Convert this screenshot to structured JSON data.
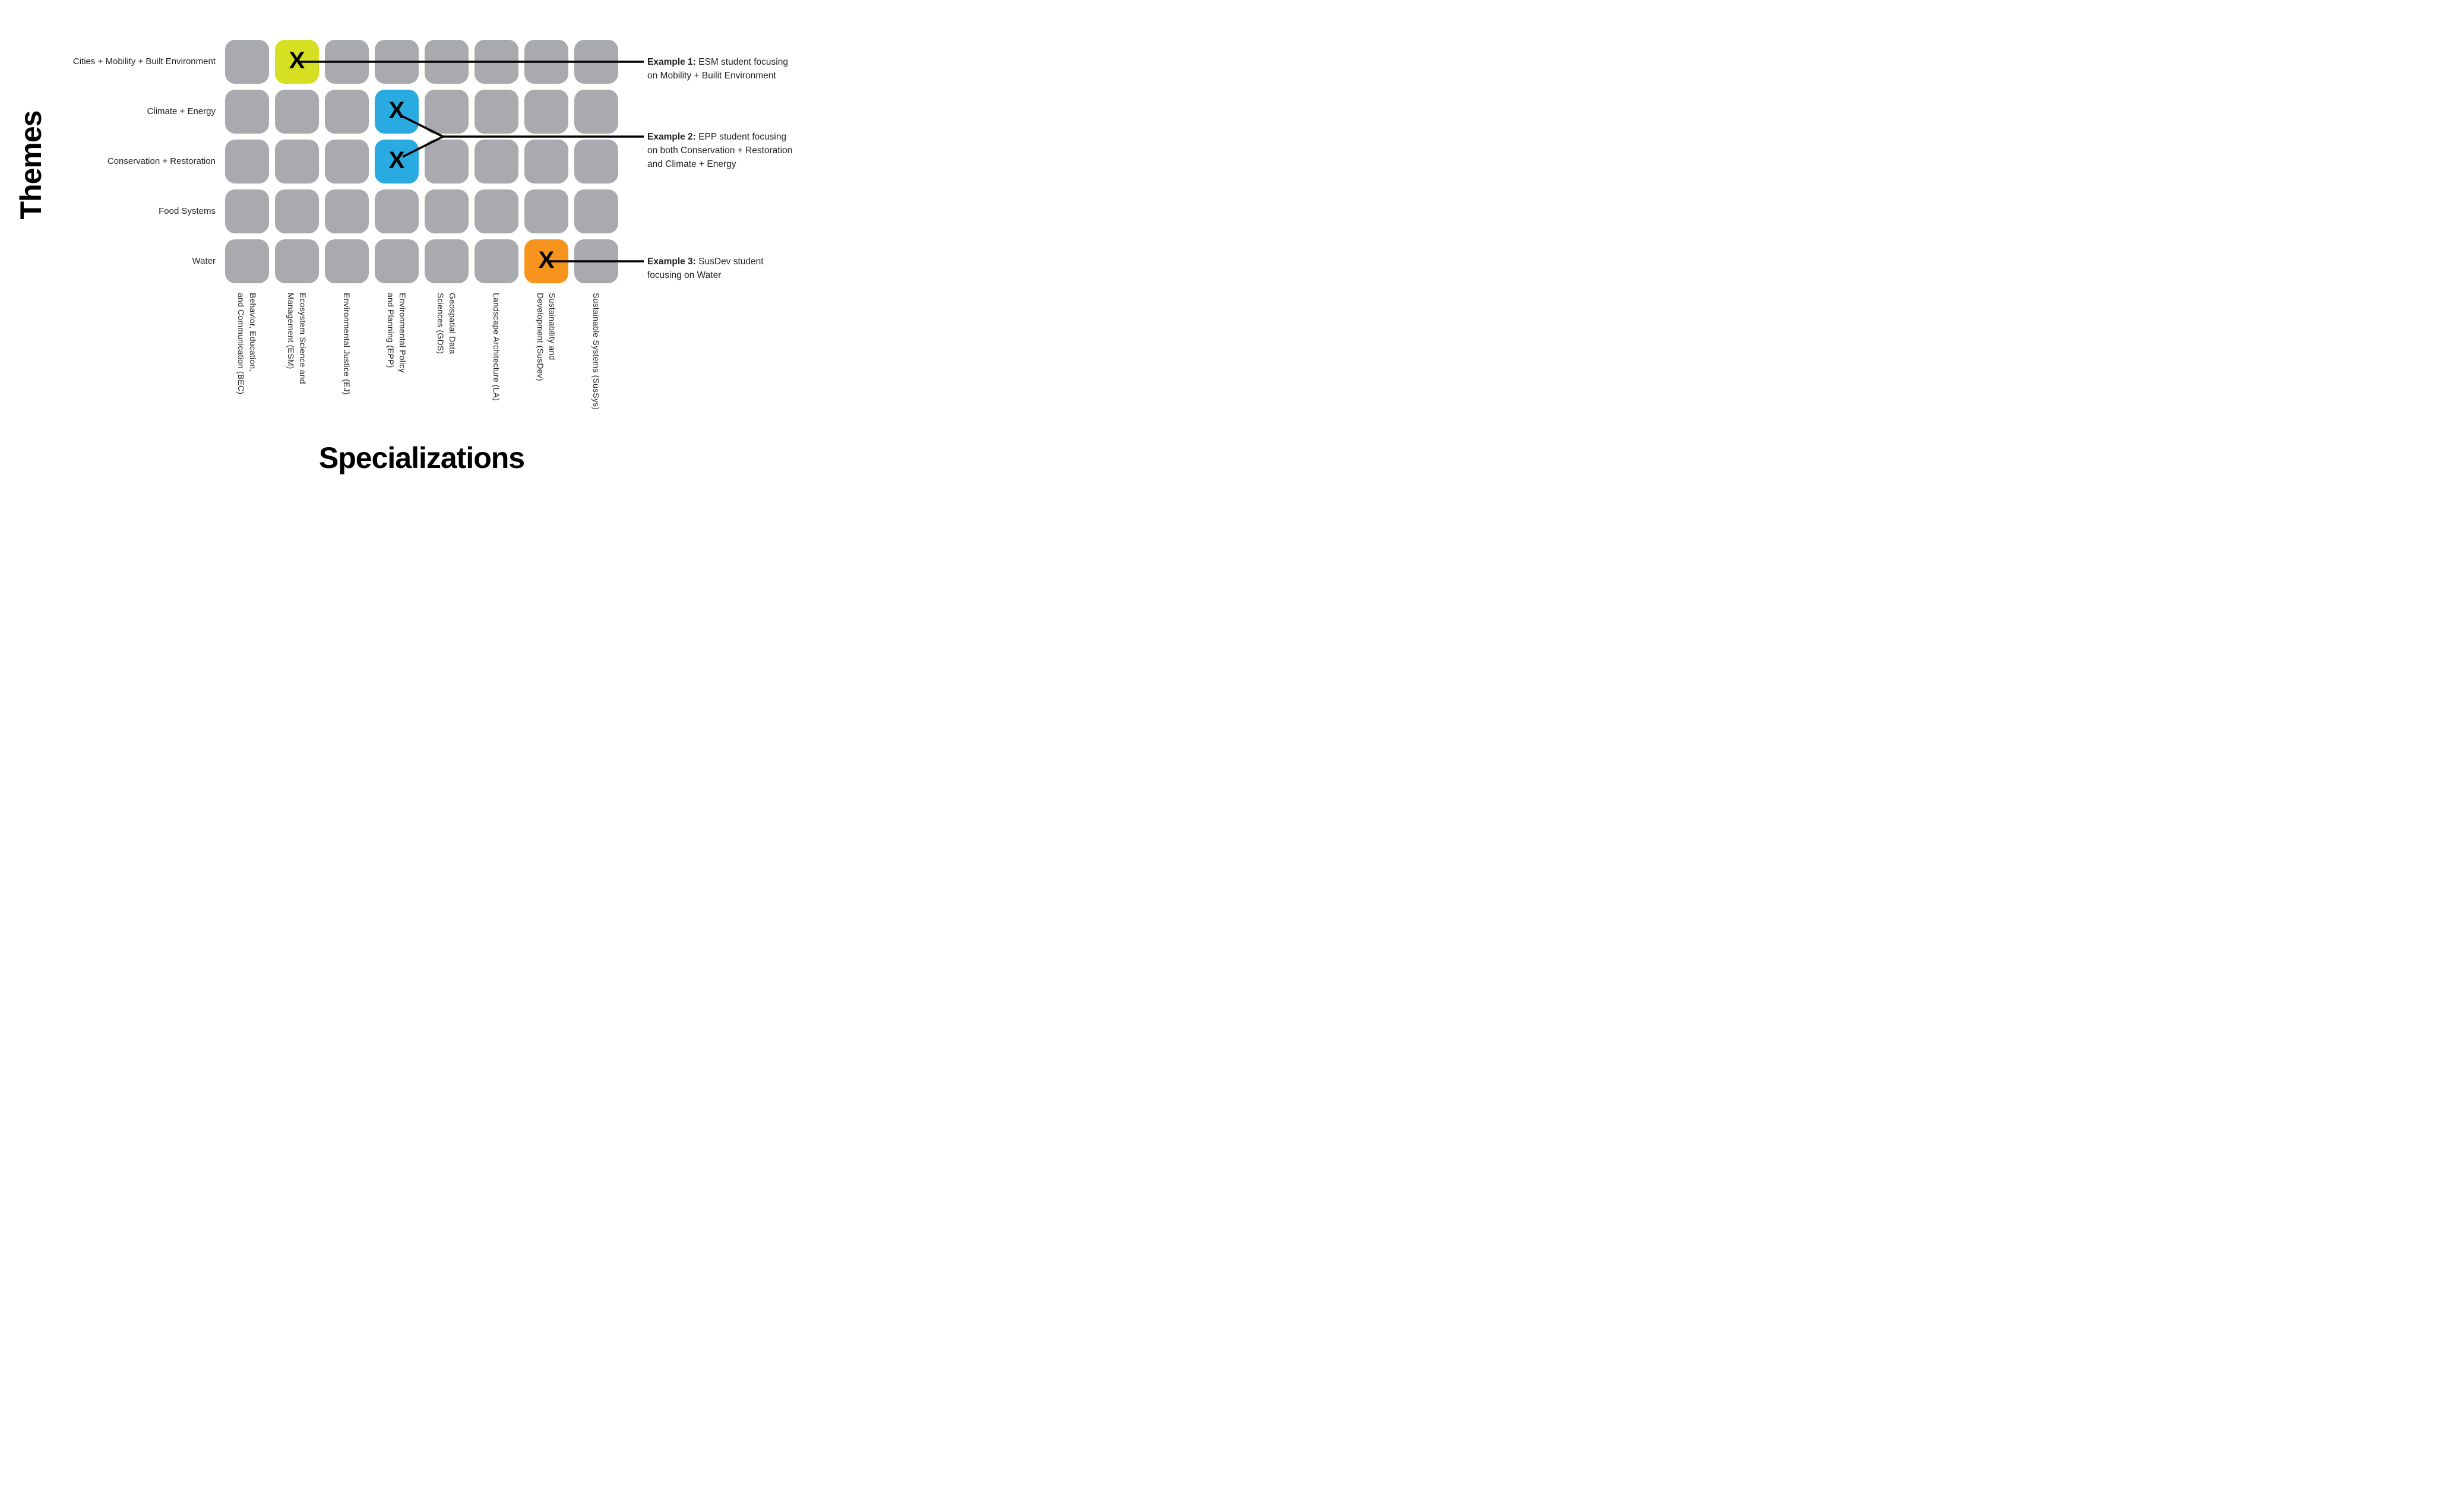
{
  "axes": {
    "y_label": "Themes",
    "x_label": "Specializations"
  },
  "themes": [
    "Cities + Mobility + Built Environment",
    "Climate + Energy",
    "Conservation + Restoration",
    "Food Systems",
    "Water"
  ],
  "specializations": [
    {
      "label": "Behavior, Education, and Communication (BEC)",
      "lines": [
        "Behavior, Education,",
        "and Communication (BEC)"
      ]
    },
    {
      "label": "Ecosystem Science and Management (ESM)",
      "lines": [
        "Ecosystem Science and",
        "Management (ESM)"
      ]
    },
    {
      "label": "Environmental Justice (EJ)",
      "lines": [
        "Environmental Justice (EJ)"
      ]
    },
    {
      "label": "Environmental Policy and Planning (EPP)",
      "lines": [
        "Environmental Policy",
        "and Planning (EPP)"
      ]
    },
    {
      "label": "Geospatial Data Sciences (GDS)",
      "lines": [
        "Geospatial Data",
        "Sciences (GDS)"
      ]
    },
    {
      "label": "Landscape Architecture (LA)",
      "lines": [
        "Landscape Architecture (LA)"
      ]
    },
    {
      "label": "Sustainability and Development (SusDev)",
      "lines": [
        "Sustainability and",
        "Development (SusDev)"
      ]
    },
    {
      "label": "Sustainable Systems (SusSys)",
      "lines": [
        "Sustainable Systems (SusSys)"
      ]
    }
  ],
  "grid": {
    "rows": 5,
    "cols": 8
  },
  "marks": [
    {
      "theme_index": 0,
      "spec_index": 1,
      "color": "#d7df23",
      "symbol": "X"
    },
    {
      "theme_index": 1,
      "spec_index": 3,
      "color": "#29abe2",
      "symbol": "X"
    },
    {
      "theme_index": 2,
      "spec_index": 3,
      "color": "#29abe2",
      "symbol": "X"
    },
    {
      "theme_index": 4,
      "spec_index": 6,
      "color": "#f7941d",
      "symbol": "X"
    }
  ],
  "examples": [
    {
      "connects_to": [
        0
      ],
      "lines": [
        {
          "bold": "Example 1:",
          "text": " ESM student focusing"
        },
        {
          "bold": "",
          "text": "on Mobility + Builit Environment"
        }
      ]
    },
    {
      "connects_to": [
        1,
        2
      ],
      "lines": [
        {
          "bold": "Example 2:",
          "text": " EPP student focusing"
        },
        {
          "bold": "",
          "text": "on both Conservation + Restoration"
        },
        {
          "bold": "",
          "text": "and Climate + Energy"
        }
      ]
    },
    {
      "connects_to": [
        3
      ],
      "lines": [
        {
          "bold": "Example 3:",
          "text": " SusDev student"
        },
        {
          "bold": "",
          "text": "focusing on Water"
        }
      ]
    }
  ],
  "colors": {
    "cell_gray": "#a8aaad",
    "highlight_yellow": "#d7df23",
    "highlight_blue": "#29abe2",
    "highlight_orange": "#f7941d",
    "connector": "#000000",
    "text": "#231f20"
  }
}
